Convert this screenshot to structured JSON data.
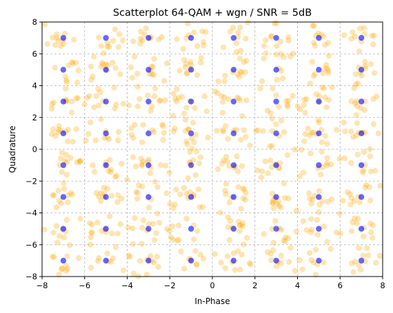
{
  "chart_data": {
    "type": "scatter",
    "title": "Scatterplot 64-QAM + wgn / SNR = 5dB",
    "xlabel": "In-Phase",
    "ylabel": "Quadrature",
    "xlim": [
      -8,
      8
    ],
    "ylim": [
      -8,
      8
    ],
    "xticks": [
      "−8",
      "−6",
      "−4",
      "−2",
      "0",
      "2",
      "4",
      "6",
      "8"
    ],
    "yticks": [
      "−8",
      "−6",
      "−4",
      "−2",
      "0",
      "2",
      "4",
      "6",
      "8"
    ],
    "grid": true,
    "grid_style": "dashed",
    "legend": "none",
    "series": [
      {
        "role": "received-samples",
        "color": "#FFA500",
        "alpha": 0.3,
        "points_per_constellation_symbol": 12,
        "spread_std": 0.5,
        "description_hidden": true
      },
      {
        "role": "constellation",
        "color": "#0000FF",
        "alpha": 0.6,
        "levels": [
          -7,
          -5,
          -3,
          -1,
          1,
          3,
          5,
          7
        ]
      }
    ]
  }
}
